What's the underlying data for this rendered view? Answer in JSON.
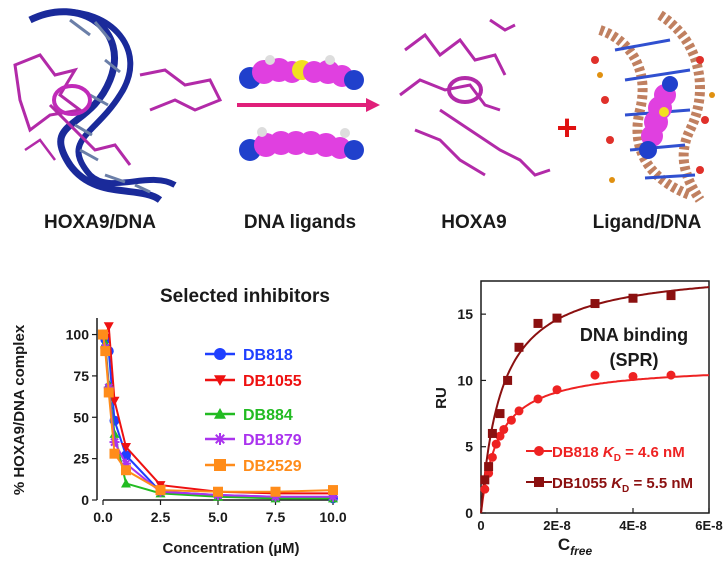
{
  "top_panel": {
    "labels": [
      "HOXA9/DNA",
      "DNA ligands",
      "HOXA9",
      "Ligand/DNA"
    ],
    "plus_sign": "+"
  },
  "chart_data": [
    {
      "type": "line",
      "title": "Selected inhibitors",
      "xlabel": "Concentration (µM)",
      "ylabel": "% HOXA9/DNA complex",
      "xlim": [
        0,
        10
      ],
      "ylim": [
        0,
        110
      ],
      "x_ticks": [
        "0.0",
        "2.5",
        "5.0",
        "7.5",
        "10.0"
      ],
      "y_ticks": [
        "0",
        "25",
        "50",
        "75",
        "100"
      ],
      "legend_position": "right",
      "series": [
        {
          "name": "DB818",
          "color": "#1f3fff",
          "marker": "circle",
          "x": [
            0,
            0.1,
            0.25,
            0.5,
            1.0,
            2.5,
            5.0,
            7.5,
            10.0
          ],
          "y": [
            100,
            97,
            90,
            48,
            27,
            5,
            3,
            2,
            1
          ]
        },
        {
          "name": "DB1055",
          "color": "#ee1111",
          "marker": "triangle-down",
          "x": [
            0,
            0.1,
            0.25,
            0.5,
            1.0,
            2.5,
            5.0,
            7.5,
            10.0
          ],
          "y": [
            100,
            98,
            105,
            60,
            32,
            9,
            5,
            4,
            4
          ]
        },
        {
          "name": "DB884",
          "color": "#22bb22",
          "marker": "triangle-up",
          "x": [
            0,
            0.1,
            0.25,
            0.5,
            1.0,
            2.5,
            5.0,
            7.5,
            10.0
          ],
          "y": [
            100,
            95,
            70,
            40,
            10,
            4,
            2,
            1,
            1
          ]
        },
        {
          "name": "DB1879",
          "color": "#aa33ee",
          "marker": "asterisk",
          "x": [
            0,
            0.1,
            0.25,
            0.5,
            1.0,
            2.5,
            5.0,
            7.5,
            10.0
          ],
          "y": [
            100,
            92,
            68,
            35,
            22,
            5,
            3,
            2,
            2
          ]
        },
        {
          "name": "DB2529",
          "color": "#ff8c1a",
          "marker": "square",
          "x": [
            0,
            0.1,
            0.25,
            0.5,
            1.0,
            2.5,
            5.0,
            7.5,
            10.0
          ],
          "y": [
            100,
            90,
            65,
            28,
            18,
            6,
            5,
            5,
            6
          ]
        }
      ]
    },
    {
      "type": "scatter",
      "title": "DNA binding (SPR)",
      "xlabel": "C",
      "xlabel_subscript": "free",
      "ylabel": "RU",
      "xlim": [
        0,
        6e-08
      ],
      "ylim": [
        0,
        17.5
      ],
      "x_ticks": [
        "0",
        "2E-8",
        "4E-8",
        "6E-8"
      ],
      "y_ticks": [
        "0",
        "5",
        "10",
        "15"
      ],
      "legend_position": "bottom-right",
      "series": [
        {
          "name": "DB818",
          "kd_label": "K",
          "kd_sub": "D",
          "kd_value": " = 4.6 nM",
          "color": "#ee2222",
          "marker": "circle",
          "rmax": 11.2,
          "kd": 4.6e-09,
          "x": [
            1e-09,
            2e-09,
            3e-09,
            4e-09,
            5e-09,
            6e-09,
            8e-09,
            1e-08,
            1.5e-08,
            2e-08,
            3e-08,
            4e-08,
            5e-08
          ],
          "y": [
            1.8,
            3.0,
            4.2,
            5.2,
            5.8,
            6.3,
            7.0,
            7.7,
            8.6,
            9.3,
            10.4,
            10.3,
            10.4
          ]
        },
        {
          "name": "DB1055",
          "kd_label": "K",
          "kd_sub": "D",
          "kd_value": " = 5.5 nM",
          "color": "#8b1010",
          "marker": "square",
          "rmax": 18.6,
          "kd": 5.5e-09,
          "x": [
            1e-09,
            2e-09,
            3e-09,
            5e-09,
            7e-09,
            1e-08,
            1.5e-08,
            2e-08,
            3e-08,
            4e-08,
            5e-08
          ],
          "y": [
            2.5,
            3.5,
            6.0,
            7.5,
            10.0,
            12.5,
            14.3,
            14.7,
            15.8,
            16.2,
            16.4
          ]
        }
      ]
    }
  ]
}
